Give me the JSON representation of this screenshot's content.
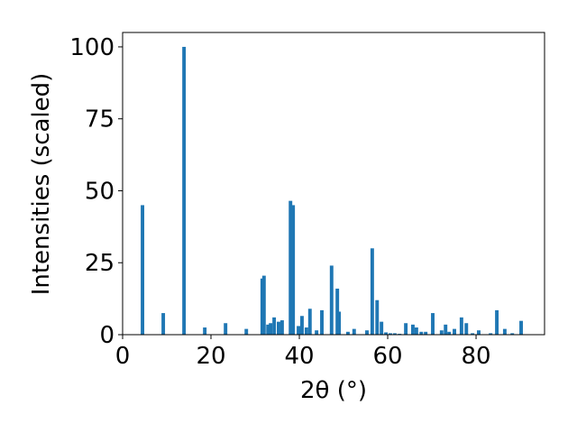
{
  "chart_data": {
    "type": "bar",
    "xlabel": "2θ (°)",
    "ylabel": "Intensities (scaled)",
    "x": [
      4.5,
      9.2,
      13.9,
      18.6,
      23.3,
      28.0,
      31.6,
      32.0,
      32.9,
      33.5,
      34.3,
      35.3,
      36.1,
      38.0,
      38.6,
      39.8,
      40.6,
      41.6,
      42.4,
      43.9,
      45.1,
      47.3,
      48.6,
      49.0,
      51.0,
      52.4,
      55.3,
      56.5,
      57.6,
      58.6,
      59.6,
      60.6,
      61.6,
      62.7,
      64.1,
      65.7,
      66.5,
      67.6,
      68.6,
      70.2,
      72.2,
      73.1,
      73.9,
      75.1,
      76.7,
      77.8,
      79.2,
      80.6,
      83.3,
      84.7,
      86.5,
      88.2,
      90.2
    ],
    "values": [
      45,
      7.5,
      100,
      2.5,
      4,
      2,
      19.5,
      20.5,
      3.5,
      4,
      6,
      4.5,
      5,
      46.5,
      45,
      3,
      6.5,
      2.5,
      9,
      1.5,
      8.5,
      24,
      16,
      8,
      1,
      2,
      1.5,
      30,
      12,
      4.5,
      0.8,
      0.5,
      0.5,
      0.3,
      4,
      3.5,
      2.5,
      1,
      1,
      7.5,
      1.5,
      3.5,
      1,
      2,
      6,
      4,
      0.5,
      1.5,
      0.5,
      8.5,
      2,
      0.5,
      4.8
    ],
    "color": "#1f77b4",
    "xlim": [
      0,
      95.5
    ],
    "ylim": [
      0,
      105
    ],
    "xticks": [
      0,
      20,
      40,
      60,
      80
    ],
    "yticks": [
      0,
      25,
      50,
      75,
      100
    ]
  }
}
